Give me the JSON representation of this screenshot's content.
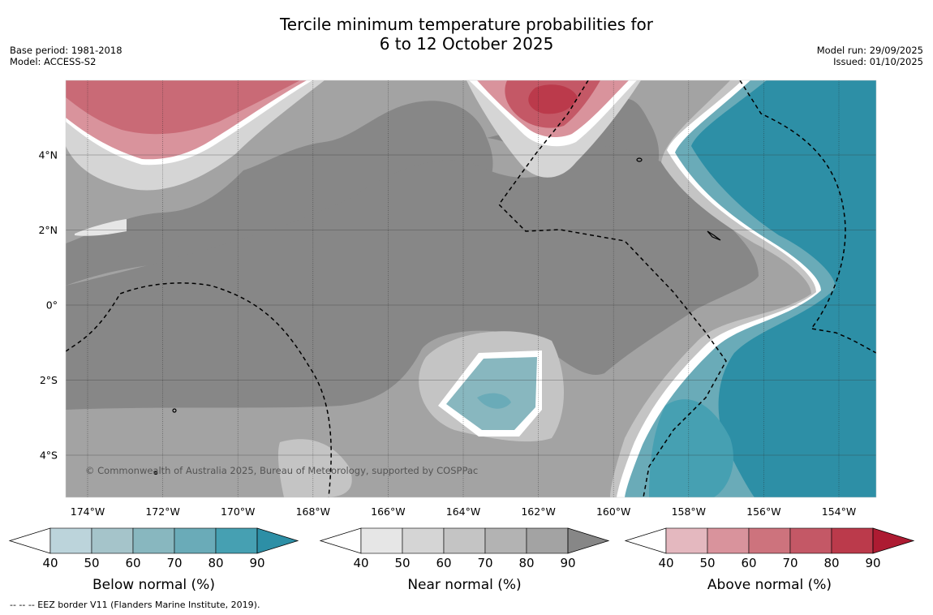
{
  "header": {
    "title_line1": "Tercile minimum temperature probabilities for",
    "title_line2": "6 to 12 October 2025",
    "base_period": "Base period: 1981-2018",
    "model": "Model: ACCESS-S2",
    "model_run": "Model run: 29/09/2025",
    "issued": "Issued: 01/10/2025"
  },
  "map": {
    "lon_labels": [
      "174°W",
      "172°W",
      "170°W",
      "168°W",
      "166°W",
      "164°W",
      "162°W",
      "160°W",
      "158°W",
      "156°W",
      "154°W"
    ],
    "lat_labels": [
      "4°N",
      "2°N",
      "0°",
      "2°S",
      "4°S"
    ],
    "copyright": "© Commonwealth of Australia 2025, Bureau of Meteorology, supported by COSPPac"
  },
  "legends": [
    {
      "label": "Below normal (%)",
      "ticks": [
        "40",
        "50",
        "60",
        "70",
        "80",
        "90"
      ],
      "colors": [
        "#ffffff",
        "#bcd4db",
        "#a5c4ca",
        "#88b7bf",
        "#6aabb8",
        "#46a0b2",
        "#2d8fa6"
      ]
    },
    {
      "label": "Near normal (%)",
      "ticks": [
        "40",
        "50",
        "60",
        "70",
        "80",
        "90"
      ],
      "colors": [
        "#ffffff",
        "#e6e6e6",
        "#d5d5d5",
        "#c4c4c4",
        "#b3b3b3",
        "#a3a3a3",
        "#878787"
      ]
    },
    {
      "label": "Above normal (%)",
      "ticks": [
        "40",
        "50",
        "60",
        "70",
        "80",
        "90"
      ],
      "colors": [
        "#ffffff",
        "#e4b8bf",
        "#d9939c",
        "#cd737d",
        "#c45866",
        "#bb3a4b",
        "#ad1b32"
      ]
    }
  ],
  "footnote": "--  --  -- EEZ border V11 (Flanders Marine Institute, 2019)."
}
